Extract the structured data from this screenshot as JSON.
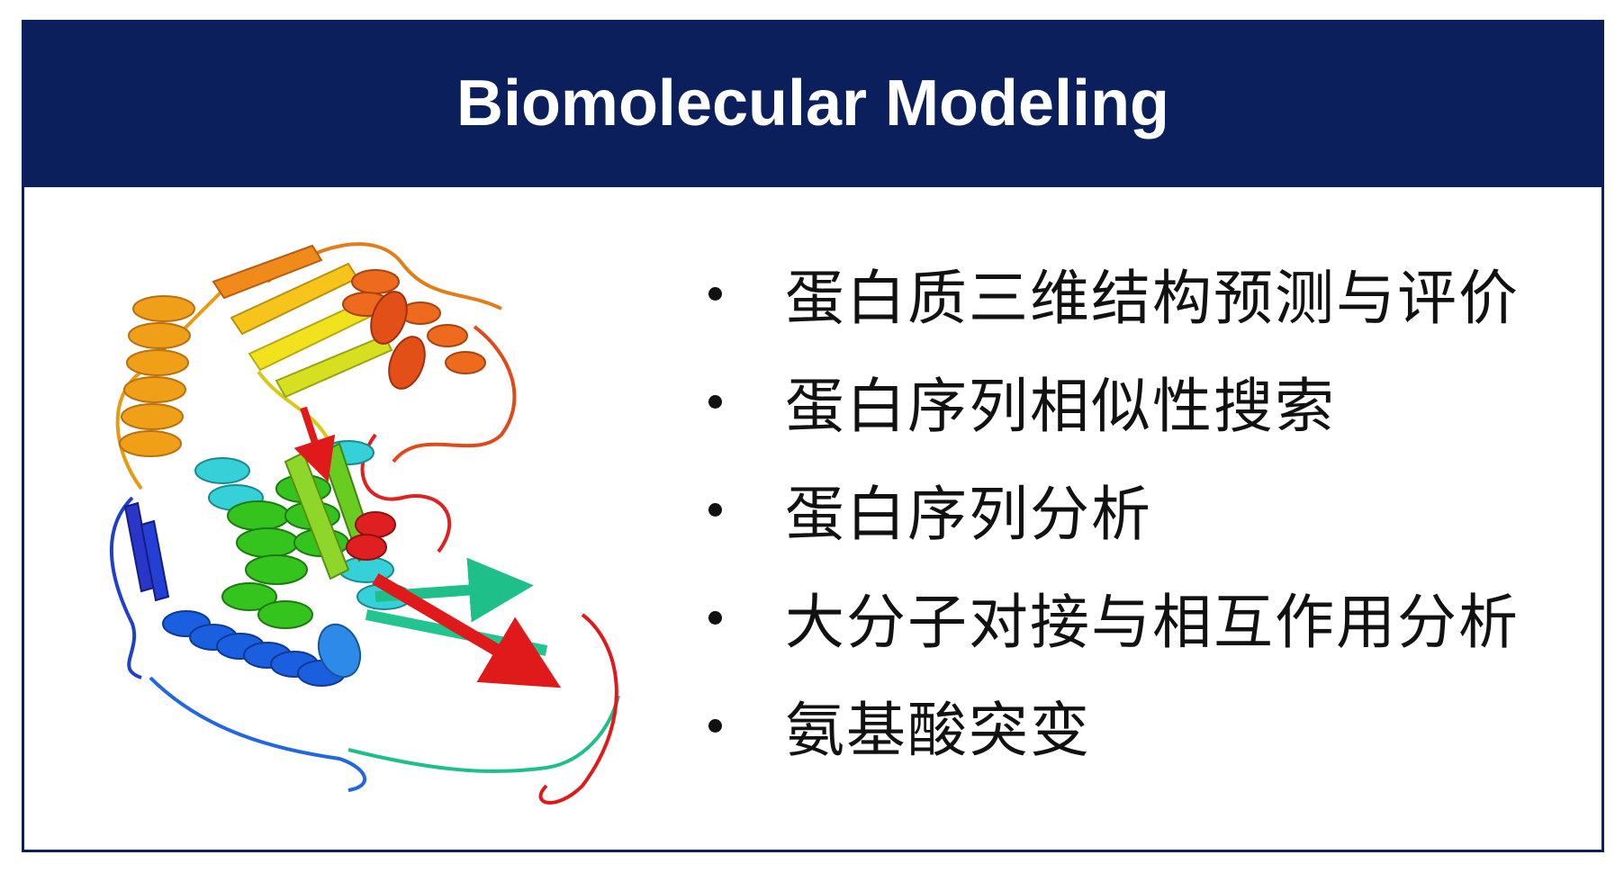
{
  "title": "Biomolecular Modeling",
  "bullets": [
    "蛋白质三维结构预测与评价",
    "蛋白序列相似性搜索",
    "蛋白序列分析",
    "大分子对接与相互作用分析",
    "氨基酸突变"
  ],
  "colors": {
    "header_bg": "#0b1f5c",
    "header_text": "#ffffff",
    "border": "#0b1f5c"
  },
  "image": {
    "name": "protein-ribbon-structure"
  }
}
